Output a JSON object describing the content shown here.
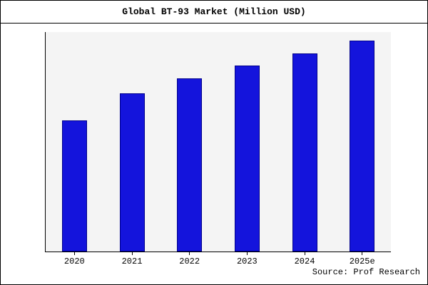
{
  "chart_data": {
    "type": "bar",
    "title": "Global BT-93 Market (Million USD)",
    "categories": [
      "2020",
      "2021",
      "2022",
      "2023",
      "2024",
      "2025e"
    ],
    "values": [
      62,
      75,
      82,
      88,
      94,
      100
    ],
    "xlabel": "",
    "ylabel": "",
    "ylim": [
      0,
      104
    ],
    "grid": false,
    "legend": false,
    "bar_color": "#1414dc",
    "bar_border_color": "#00008b",
    "plot_bg": "#f4f4f4",
    "source": "Source: Prof Research"
  }
}
